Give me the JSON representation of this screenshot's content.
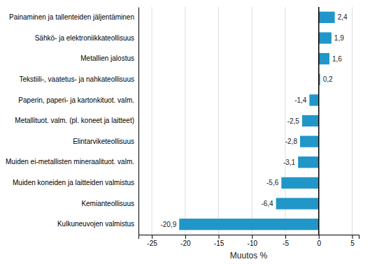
{
  "chart_data": {
    "type": "bar",
    "orientation": "horizontal",
    "categories": [
      "Kulkuneuvojen valmistus",
      "Kemianteollisuus",
      "Muiden koneiden ja laitteiden valmistus",
      "Muiden ei-metallisten mineraalituot. valm.",
      "Elintarviketeollisuus",
      "Metallituot. valm. (pl. koneet ja laitteet)",
      "Paperin, paperi- ja kartonkituot. valm.",
      "Tekstiili-, vaatetus- ja nahkateollisuus",
      "Metallien jalostus",
      "Sähkö- ja elektroniikkateollisuus",
      "Painaminen ja tallenteiden jäljentäminen"
    ],
    "values": [
      -20.9,
      -6.4,
      -5.6,
      -3.1,
      -2.8,
      -2.5,
      -1.4,
      0.2,
      1.6,
      1.9,
      2.4
    ],
    "value_labels": [
      "-20,9",
      "-6,4",
      "-5,6",
      "-3,1",
      "-2,8",
      "-2,5",
      "-1,4",
      "0,2",
      "1,6",
      "1,9",
      "2,4"
    ],
    "data_labels": true,
    "color": "#2196c8",
    "xlabel": "Muutos %",
    "xlim": [
      -27,
      6
    ],
    "xticks": [
      -25,
      -20,
      -15,
      -10,
      -5,
      0,
      5
    ],
    "grid": true
  }
}
